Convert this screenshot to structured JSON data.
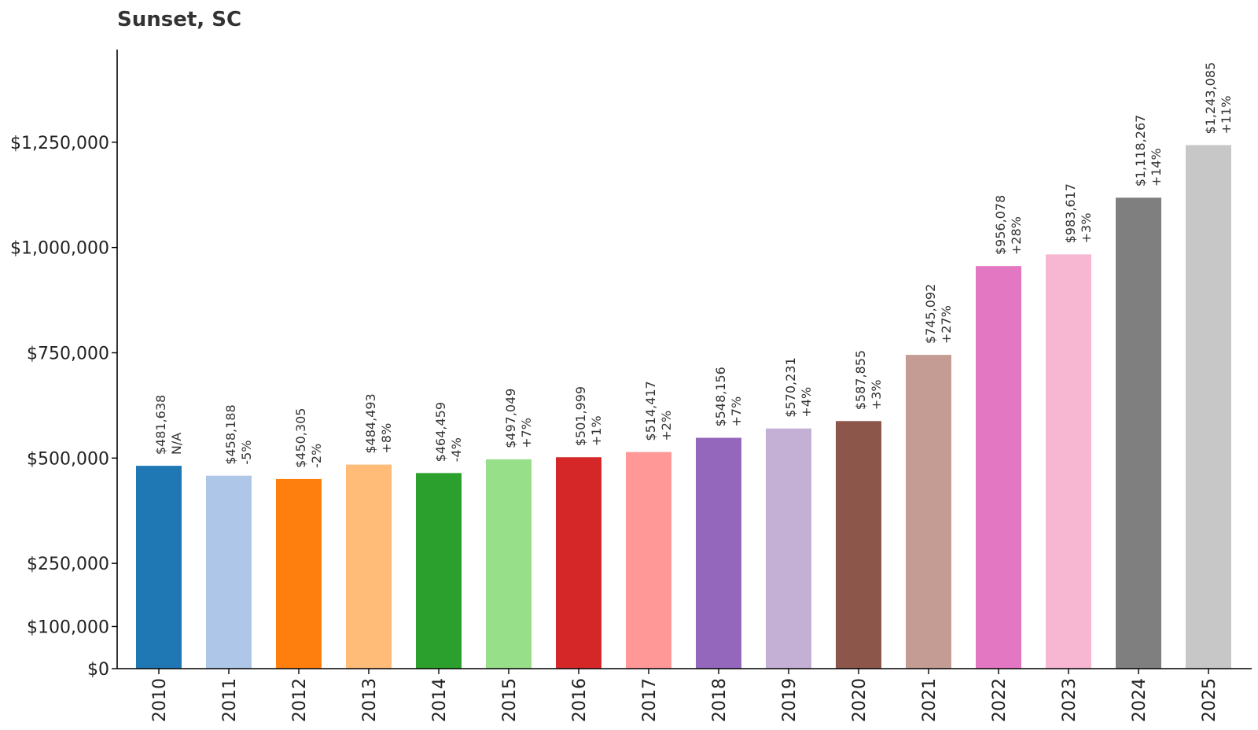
{
  "chart_data": {
    "type": "bar",
    "title": "Sunset, SC",
    "xlabel": "",
    "ylabel": "",
    "ylim": [
      0,
      1470000
    ],
    "grid": false,
    "legend": "none",
    "yticks": [
      0,
      100000,
      250000,
      500000,
      750000,
      1000000,
      1250000
    ],
    "ytick_labels": [
      "$0",
      "$100,000",
      "$250,000",
      "$500,000",
      "$750,000",
      "$1,000,000",
      "$1,250,000"
    ],
    "categories": [
      "2010",
      "2011",
      "2012",
      "2013",
      "2014",
      "2015",
      "2016",
      "2017",
      "2018",
      "2019",
      "2020",
      "2021",
      "2022",
      "2023",
      "2024",
      "2025"
    ],
    "values": [
      481638,
      458188,
      450305,
      484493,
      464459,
      497049,
      501999,
      514417,
      548156,
      570231,
      587855,
      745092,
      956078,
      983617,
      1118267,
      1243085
    ],
    "value_labels": [
      "$481,638",
      "$458,188",
      "$450,305",
      "$484,493",
      "$464,459",
      "$497,049",
      "$501,999",
      "$514,417",
      "$548,156",
      "$570,231",
      "$587,855",
      "$745,092",
      "$956,078",
      "$983,617",
      "$1,118,267",
      "$1,243,085"
    ],
    "change_labels": [
      "N/A",
      "-5%",
      "-2%",
      "+8%",
      "-4%",
      "+7%",
      "+1%",
      "+2%",
      "+7%",
      "+4%",
      "+3%",
      "+27%",
      "+28%",
      "+3%",
      "+14%",
      "+11%"
    ],
    "colors": [
      "#1f77b4",
      "#aec7e8",
      "#ff7f0e",
      "#ffbb78",
      "#2ca02c",
      "#98df8a",
      "#d62728",
      "#ff9896",
      "#9467bd",
      "#c5b0d5",
      "#8c564b",
      "#c49c94",
      "#e377c2",
      "#f7b6d2",
      "#7f7f7f",
      "#c7c7c7"
    ]
  }
}
